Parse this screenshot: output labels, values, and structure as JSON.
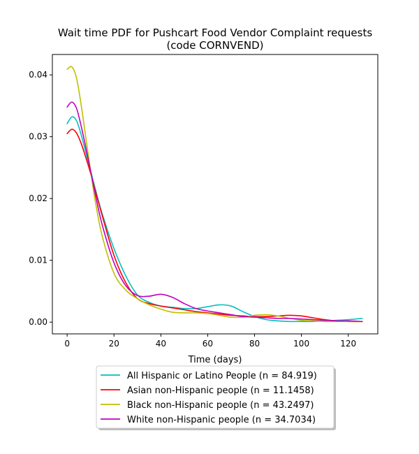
{
  "chart_data": {
    "type": "line",
    "title": "Wait time PDF for Pushcart Food Vendor Complaint  requests",
    "subtitle": "(code CORNVEND)",
    "xlabel": "Time (days)",
    "ylabel": "",
    "xlim": [
      -6.3,
      132.6
    ],
    "ylim": [
      -0.0019,
      0.0433
    ],
    "xticks": [
      0,
      20,
      40,
      60,
      80,
      100,
      120
    ],
    "yticks": [
      0.0,
      0.01,
      0.02,
      0.03,
      0.04
    ],
    "xtick_labels": [
      "0",
      "20",
      "40",
      "60",
      "80",
      "100",
      "120"
    ],
    "ytick_labels": [
      "0.00",
      "0.01",
      "0.02",
      "0.03",
      "0.04"
    ],
    "grid": false,
    "legend_position": "bottom-center",
    "series": [
      {
        "name": "All Hispanic or Latino People (n = 84.919)",
        "color": "#00bfbf",
        "x": [
          0,
          2,
          4,
          6,
          8,
          10,
          12,
          15,
          20,
          25,
          30,
          35,
          40,
          45,
          50,
          55,
          60,
          65,
          70,
          75,
          80,
          85,
          90,
          95,
          100,
          105,
          110,
          115,
          120,
          126
        ],
        "y": [
          0.0321,
          0.0332,
          0.0326,
          0.0303,
          0.0274,
          0.0245,
          0.0216,
          0.0175,
          0.0119,
          0.0075,
          0.0044,
          0.0032,
          0.0026,
          0.0024,
          0.0022,
          0.0022,
          0.0025,
          0.0028,
          0.0026,
          0.0017,
          0.0009,
          0.0004,
          0.0002,
          0.0001,
          0.0001,
          0.0001,
          0.0002,
          0.0003,
          0.0004,
          0.0006
        ]
      },
      {
        "name": "Asian non-Hispanic people (n = 11.1458)",
        "color": "#ff0000",
        "x": [
          0,
          2,
          4,
          6,
          8,
          10,
          12,
          15,
          20,
          25,
          30,
          35,
          40,
          45,
          50,
          55,
          60,
          65,
          70,
          75,
          80,
          85,
          90,
          95,
          100,
          105,
          110,
          115,
          120,
          126
        ],
        "y": [
          0.0305,
          0.0312,
          0.0306,
          0.0289,
          0.0266,
          0.0241,
          0.0213,
          0.0172,
          0.0108,
          0.0064,
          0.0038,
          0.003,
          0.0026,
          0.0023,
          0.002,
          0.0017,
          0.0015,
          0.0013,
          0.0011,
          0.001,
          0.0009,
          0.0009,
          0.001,
          0.0011,
          0.001,
          0.0007,
          0.0004,
          0.0002,
          0.0001,
          0.0001
        ]
      },
      {
        "name": "Black non-Hispanic people (n = 43.2497)",
        "color": "#bfbf00",
        "x": [
          0,
          2,
          4,
          6,
          8,
          10,
          12,
          15,
          20,
          25,
          30,
          35,
          40,
          45,
          50,
          55,
          60,
          65,
          70,
          75,
          80,
          85,
          90,
          95,
          100,
          105,
          110,
          115,
          120,
          126
        ],
        "y": [
          0.0409,
          0.0413,
          0.0395,
          0.0351,
          0.0298,
          0.0245,
          0.0196,
          0.0139,
          0.0079,
          0.0052,
          0.0038,
          0.0028,
          0.0021,
          0.0016,
          0.0015,
          0.0015,
          0.0014,
          0.0011,
          0.0008,
          0.0008,
          0.0011,
          0.0012,
          0.001,
          0.0006,
          0.0003,
          0.0002,
          0.0001,
          0.0001,
          0.0001,
          0.0001
        ]
      },
      {
        "name": "White non-Hispanic people (n = 34.7034)",
        "color": "#bf00bf",
        "x": [
          0,
          2,
          4,
          6,
          8,
          10,
          12,
          15,
          20,
          25,
          30,
          35,
          40,
          45,
          50,
          55,
          60,
          65,
          70,
          75,
          80,
          85,
          90,
          95,
          100,
          105,
          110,
          115,
          120,
          126
        ],
        "y": [
          0.0348,
          0.0356,
          0.0346,
          0.0317,
          0.0282,
          0.0245,
          0.0207,
          0.0157,
          0.0096,
          0.0059,
          0.0043,
          0.0042,
          0.0045,
          0.004,
          0.003,
          0.0022,
          0.0018,
          0.0015,
          0.0012,
          0.0009,
          0.0008,
          0.0007,
          0.0006,
          0.0006,
          0.0005,
          0.0004,
          0.0003,
          0.0002,
          0.0002,
          0.0001
        ]
      }
    ]
  }
}
